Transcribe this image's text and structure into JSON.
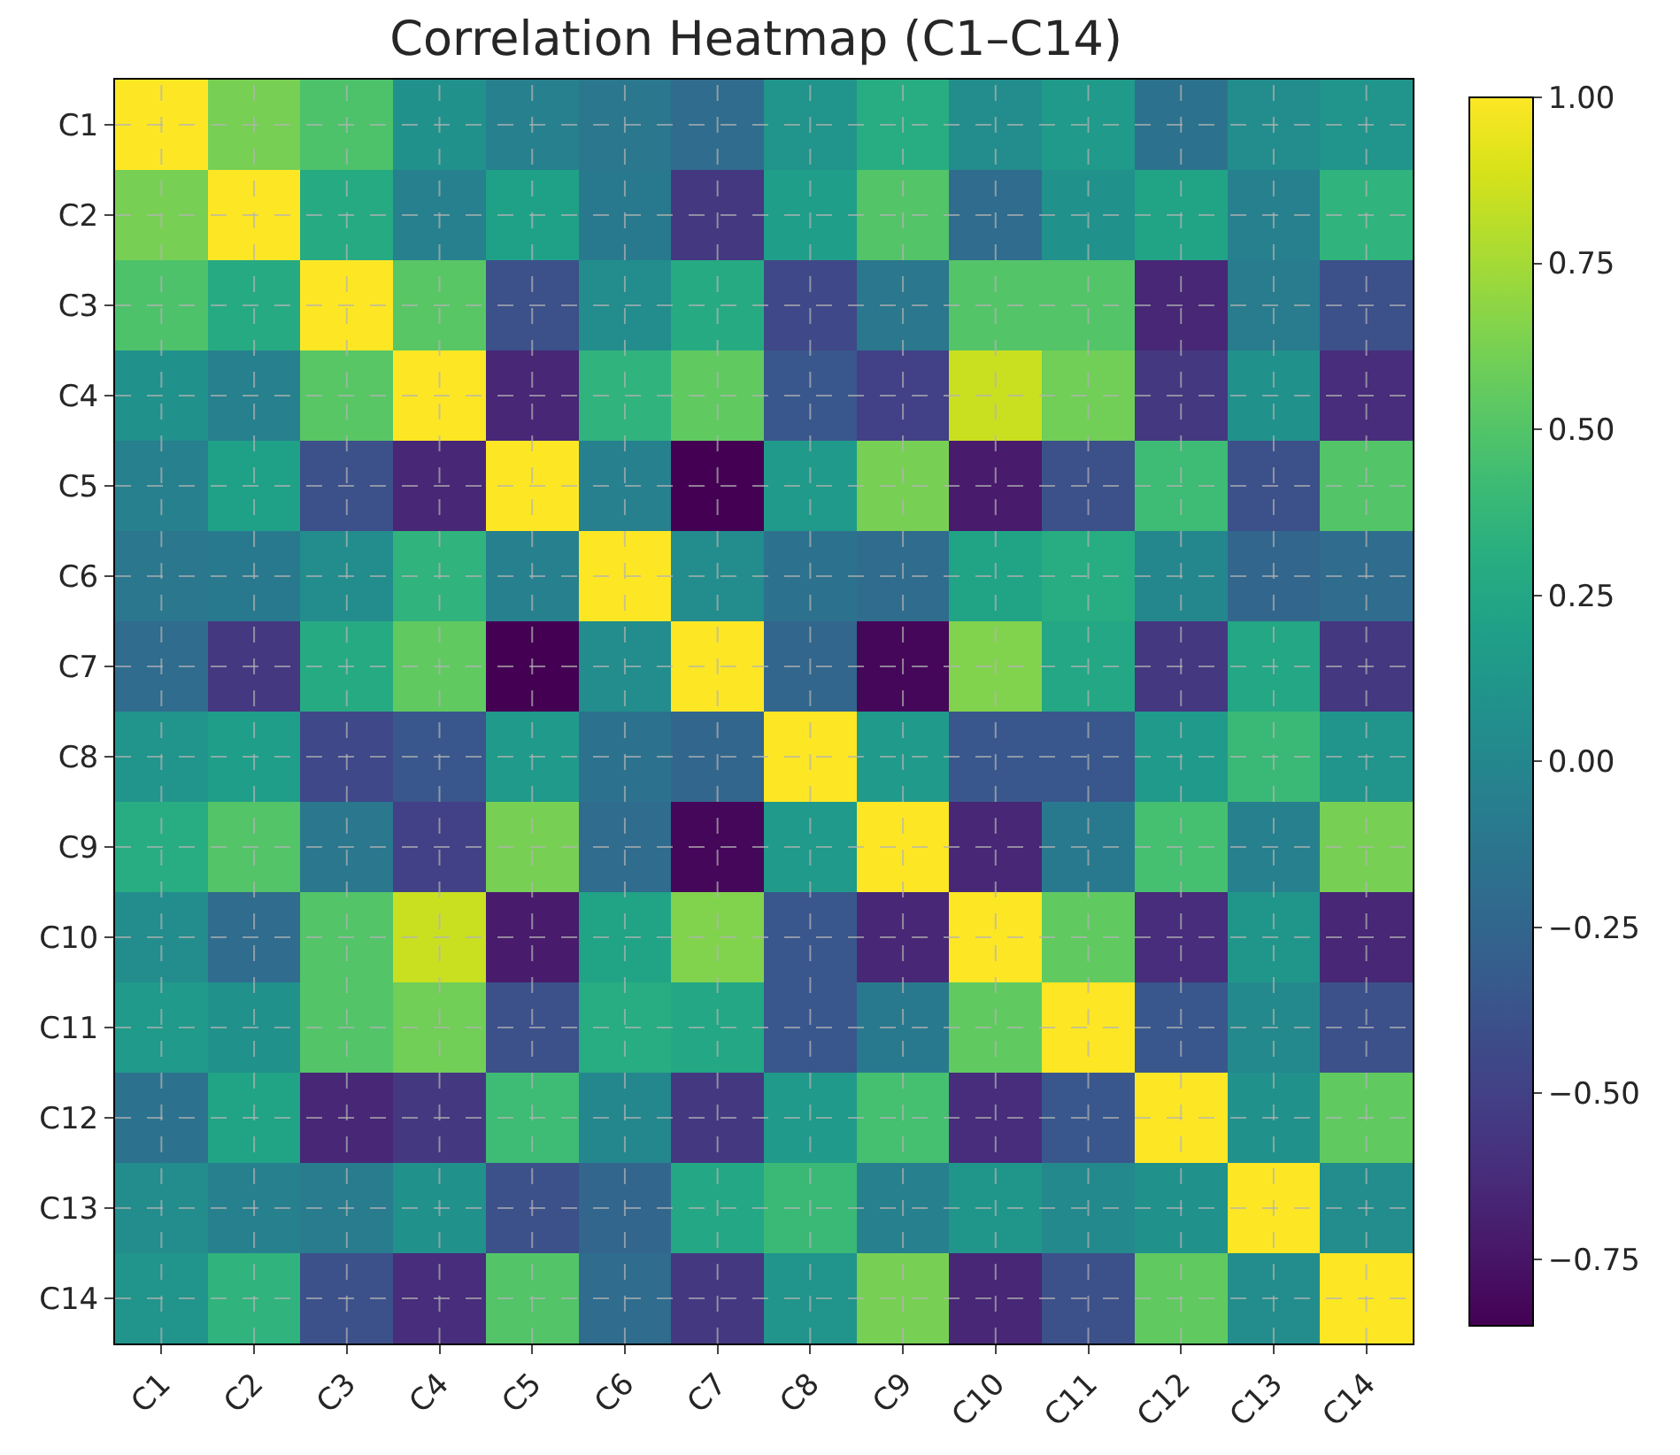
{
  "chart_data": {
    "type": "heatmap",
    "title": "Correlation Heatmap (C1–C14)",
    "categories": [
      "C1",
      "C2",
      "C3",
      "C4",
      "C5",
      "C6",
      "C7",
      "C8",
      "C9",
      "C10",
      "C11",
      "C12",
      "C13",
      "C14"
    ],
    "y_categories": [
      "C1",
      "C2",
      "C3",
      "C4",
      "C5",
      "C6",
      "C7",
      "C8",
      "C9",
      "C10",
      "C11",
      "C12",
      "C13",
      "C14"
    ],
    "cells": [
      [
        1,
        0.62,
        0.48,
        0.08,
        -0.05,
        -0.12,
        -0.2,
        0.1,
        0.3,
        0.05,
        0.15,
        -0.15,
        0.05,
        0.1
      ],
      [
        0.62,
        1,
        0.28,
        -0.05,
        0.2,
        -0.1,
        -0.55,
        0.18,
        0.5,
        -0.2,
        0.08,
        0.22,
        -0.05,
        0.35
      ],
      [
        0.48,
        0.28,
        1,
        0.52,
        -0.4,
        0.05,
        0.28,
        -0.45,
        -0.12,
        0.5,
        0.5,
        -0.65,
        -0.08,
        -0.4
      ],
      [
        0.08,
        -0.05,
        0.52,
        1,
        -0.65,
        0.35,
        0.55,
        -0.35,
        -0.5,
        0.85,
        0.6,
        -0.55,
        0.08,
        -0.62
      ],
      [
        -0.05,
        0.2,
        -0.4,
        -0.65,
        1,
        -0.05,
        -0.85,
        0.15,
        0.62,
        -0.72,
        -0.4,
        0.42,
        -0.4,
        0.5
      ],
      [
        -0.12,
        -0.1,
        0.05,
        0.35,
        -0.05,
        1,
        0.05,
        -0.15,
        -0.2,
        0.22,
        0.3,
        0.0,
        -0.25,
        -0.2
      ],
      [
        -0.2,
        -0.55,
        0.28,
        0.55,
        -0.85,
        0.05,
        1,
        -0.25,
        -0.82,
        0.65,
        0.25,
        -0.55,
        0.25,
        -0.55
      ],
      [
        0.1,
        0.18,
        -0.45,
        -0.35,
        0.15,
        -0.15,
        -0.25,
        1,
        0.15,
        -0.35,
        -0.35,
        0.15,
        0.4,
        0.1
      ],
      [
        0.3,
        0.5,
        -0.12,
        -0.5,
        0.62,
        -0.2,
        -0.82,
        0.15,
        1,
        -0.65,
        -0.1,
        0.45,
        -0.05,
        0.62
      ],
      [
        0.05,
        -0.2,
        0.5,
        0.85,
        -0.72,
        0.22,
        0.65,
        -0.35,
        -0.65,
        1,
        0.55,
        -0.62,
        0.12,
        -0.65
      ],
      [
        0.15,
        0.08,
        0.5,
        0.6,
        -0.4,
        0.3,
        0.25,
        -0.35,
        -0.1,
        0.55,
        1,
        -0.35,
        0.02,
        -0.4
      ],
      [
        -0.15,
        0.22,
        -0.65,
        -0.55,
        0.42,
        0.0,
        -0.55,
        0.15,
        0.45,
        -0.62,
        -0.35,
        1,
        0.08,
        0.55
      ],
      [
        0.05,
        -0.05,
        -0.08,
        0.08,
        -0.4,
        -0.25,
        0.25,
        0.4,
        -0.05,
        0.12,
        0.02,
        0.08,
        1,
        0.05
      ],
      [
        0.1,
        0.35,
        -0.4,
        -0.62,
        0.5,
        -0.2,
        -0.55,
        0.1,
        0.62,
        -0.65,
        -0.4,
        0.55,
        0.05,
        1
      ]
    ],
    "clim": [
      -0.85,
      1
    ],
    "cticks": [
      {
        "value": -0.75,
        "label": "−0.75"
      },
      {
        "value": -0.5,
        "label": "−0.50"
      },
      {
        "value": -0.25,
        "label": "−0.25"
      },
      {
        "value": 0,
        "label": "0.00"
      },
      {
        "value": 0.25,
        "label": "0.25"
      },
      {
        "value": 0.5,
        "label": "0.50"
      },
      {
        "value": 0.75,
        "label": "0.75"
      },
      {
        "value": 1,
        "label": "1.00"
      }
    ],
    "grid": true
  }
}
